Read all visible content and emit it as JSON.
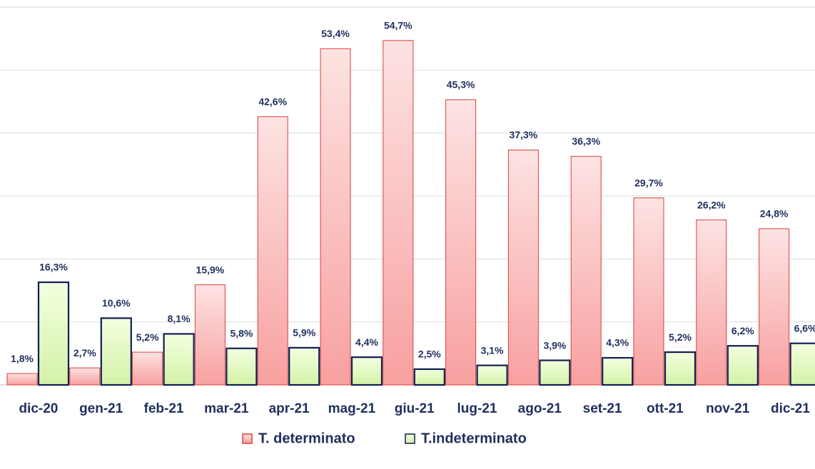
{
  "chart_data": {
    "type": "bar",
    "categories": [
      "dic-20",
      "gen-21",
      "feb-21",
      "mar-21",
      "apr-21",
      "mag-21",
      "giu-21",
      "lug-21",
      "ago-21",
      "set-21",
      "ott-21",
      "nov-21",
      "dic-21"
    ],
    "series": [
      {
        "name": "T. determinato",
        "color": "#f8aaaa",
        "stroke": "#d9403a",
        "values": [
          1.8,
          2.7,
          5.2,
          15.9,
          42.6,
          53.4,
          54.7,
          45.3,
          37.3,
          36.3,
          29.7,
          26.2,
          24.8
        ],
        "value_labels": [
          "1,8%",
          "2,7%",
          "5,2%",
          "15,9%",
          "42,6%",
          "53,4%",
          "54,7%",
          "45,3%",
          "37,3%",
          "36,3%",
          "29,7%",
          "26,2%",
          "24,8%"
        ]
      },
      {
        "name": "T.indeterminato",
        "color": "#e2f7c2",
        "stroke": "#0f1f55",
        "values": [
          16.3,
          10.6,
          8.1,
          5.8,
          5.9,
          4.4,
          2.5,
          3.1,
          3.9,
          4.3,
          5.2,
          6.2,
          6.6
        ],
        "value_labels": [
          "16,3%",
          "10,6%",
          "8,1%",
          "5,8%",
          "5,9%",
          "4,4%",
          "2,5%",
          "3,1%",
          "3,9%",
          "4,3%",
          "5,2%",
          "6,2%",
          "6,6%"
        ]
      }
    ],
    "ylim": [
      0,
      60
    ],
    "yticks": [
      0,
      10,
      20,
      30,
      40,
      50,
      60
    ],
    "grid": true,
    "legend": "bottom"
  }
}
